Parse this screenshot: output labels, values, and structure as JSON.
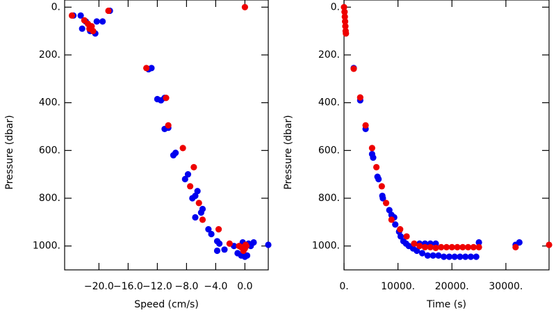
{
  "chart_data": [
    {
      "type": "scatter",
      "x_label": "Speed (cm/s)",
      "y_label": "Pressure (dbar)",
      "xlim": [
        -24.7,
        3.2
      ],
      "ylim": [
        1100,
        -30
      ],
      "xticks": [
        {
          "value": -20,
          "label": "−20.0"
        },
        {
          "value": -16,
          "label": "−16.0"
        },
        {
          "value": -12,
          "label": "−12.0"
        },
        {
          "value": -8,
          "label": "−8.0"
        },
        {
          "value": -4,
          "label": "−4.0"
        },
        {
          "value": 0,
          "label": "0.0"
        }
      ],
      "yticks": [
        {
          "value": 0,
          "label": "0."
        },
        {
          "value": 200,
          "label": "200."
        },
        {
          "value": 400,
          "label": "400."
        },
        {
          "value": 600,
          "label": "600."
        },
        {
          "value": 800,
          "label": "800."
        },
        {
          "value": 1000,
          "label": "1000."
        }
      ],
      "series": [
        {
          "color": "#0000ee",
          "x": [
            -23.5,
            -22.5,
            -22.3,
            -21.8,
            -21.2,
            -20.5,
            -20.3,
            -19.5,
            -18.5,
            -13.2,
            -12.8,
            -12,
            -11.5,
            -11,
            -11,
            -10.5,
            -9.8,
            -9.5,
            -8.2,
            -7.8,
            -7.2,
            -6.8,
            -6.5,
            -6.8,
            -6,
            -5.8,
            -5,
            -4.6,
            -3.8,
            -3.5,
            -3.8,
            -2.8,
            -1.5,
            -1,
            -0.5,
            0,
            0.3,
            0.5,
            1.2,
            3.2,
            0.8,
            -0.3
          ],
          "y": [
            35,
            35,
            90,
            60,
            100,
            110,
            60,
            60,
            15,
            260,
            255,
            385,
            390,
            380,
            510,
            505,
            620,
            610,
            720,
            700,
            800,
            790,
            770,
            880,
            860,
            845,
            930,
            950,
            980,
            990,
            1020,
            1015,
            1000,
            1030,
            1040,
            1045,
            1040,
            990,
            985,
            995,
            1000,
            985
          ]
        },
        {
          "color": "#ee0000",
          "x": [
            -23.7,
            -22,
            -21.5,
            -21,
            -20.8,
            -21.3,
            -18.7,
            0,
            -13.5,
            -10.8,
            -10.5,
            -8.5,
            -7,
            -7.5,
            -6.3,
            -5.8,
            -3.6,
            -2.1,
            -0.8,
            0,
            0.2,
            -0.2,
            0.1,
            -0.5
          ],
          "y": [
            35,
            55,
            70,
            80,
            100,
            90,
            15,
            0,
            255,
            380,
            495,
            590,
            670,
            750,
            820,
            890,
            930,
            990,
            1000,
            1010,
            1000,
            1020,
            995,
            1005
          ]
        }
      ]
    },
    {
      "type": "scatter",
      "x_label": "Time (s)",
      "y_label": "Pressure (dbar)",
      "xlim": [
        0,
        38000
      ],
      "ylim": [
        1100,
        -30
      ],
      "xticks": [
        {
          "value": 0,
          "label": "0."
        },
        {
          "value": 10000,
          "label": "10000."
        },
        {
          "value": 20000,
          "label": "20000."
        },
        {
          "value": 30000,
          "label": "30000."
        }
      ],
      "yticks": [
        {
          "value": 0,
          "label": "0."
        },
        {
          "value": 200,
          "label": "200."
        },
        {
          "value": 400,
          "label": "400."
        },
        {
          "value": 600,
          "label": "600."
        },
        {
          "value": 800,
          "label": "800."
        },
        {
          "value": 1000,
          "label": "1000."
        }
      ],
      "series": [
        {
          "color": "#0000ee",
          "x": [
            1800,
            3000,
            4000,
            5200,
            5400,
            6200,
            6400,
            7100,
            7200,
            8400,
            8800,
            9300,
            9500,
            10200,
            10500,
            11500,
            11000,
            12000,
            12800,
            13500,
            14000,
            14500,
            15000,
            15500,
            16000,
            16500,
            17000,
            17500,
            18500,
            19500,
            20500,
            21500,
            22500,
            23500,
            24500,
            25000,
            31800,
            32500
          ],
          "y": [
            255,
            390,
            510,
            615,
            630,
            710,
            720,
            790,
            800,
            850,
            870,
            880,
            910,
            940,
            960,
            990,
            980,
            1000,
            1010,
            1020,
            990,
            1030,
            990,
            1040,
            990,
            1040,
            990,
            1040,
            1045,
            1045,
            1045,
            1045,
            1045,
            1045,
            1045,
            985,
            995,
            985
          ]
        },
        {
          "color": "#ee0000",
          "x": [
            0,
            100,
            150,
            200,
            250,
            300,
            350,
            1800,
            3000,
            4000,
            5200,
            6000,
            7000,
            7800,
            8800,
            10400,
            11600,
            13000,
            14000,
            15000,
            16000,
            17000,
            18000,
            19000,
            20000,
            21000,
            22000,
            23000,
            24000,
            25000,
            31800,
            38000
          ],
          "y": [
            0,
            20,
            40,
            60,
            80,
            100,
            110,
            258,
            378,
            495,
            590,
            670,
            750,
            820,
            890,
            930,
            960,
            990,
            1000,
            1005,
            1005,
            1008,
            1005,
            1005,
            1005,
            1005,
            1005,
            1005,
            1005,
            1005,
            1005,
            995
          ]
        }
      ]
    }
  ]
}
